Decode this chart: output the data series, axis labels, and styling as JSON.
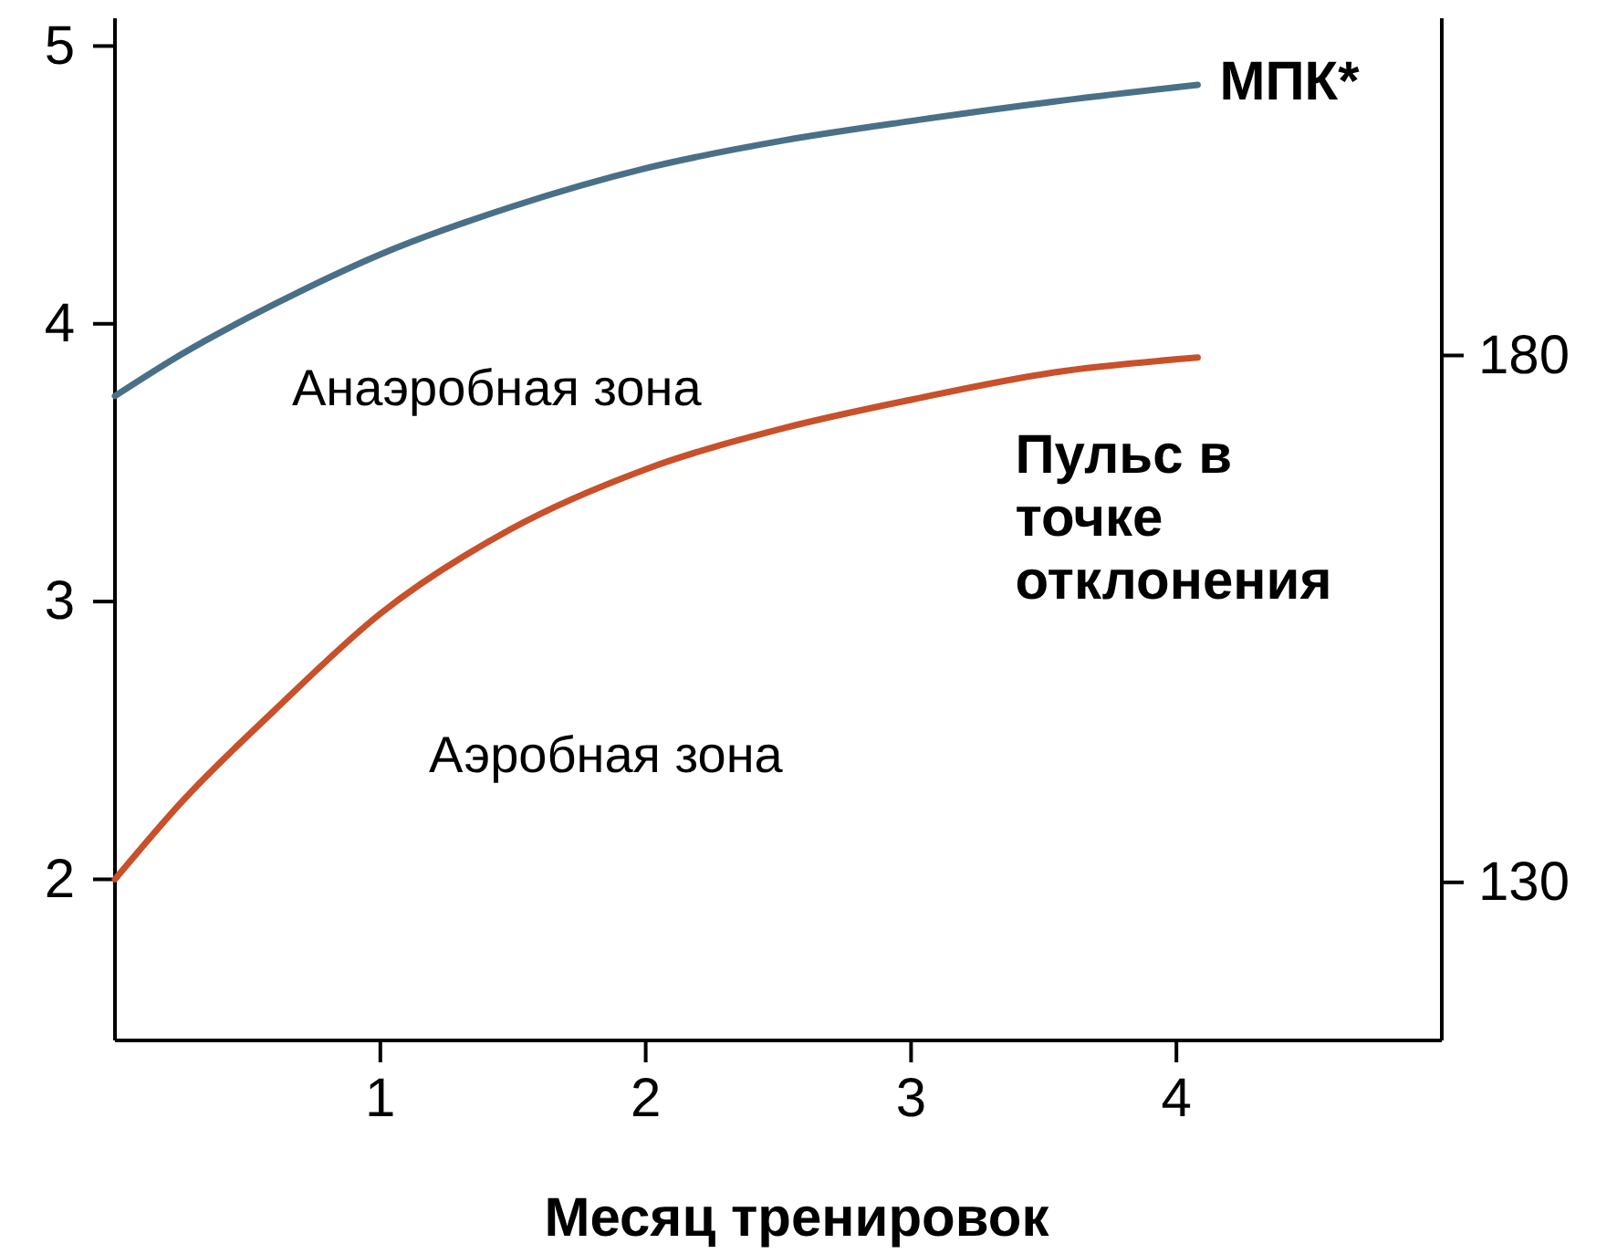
{
  "chart_data": {
    "type": "line",
    "xlabel": "Месяц тренировок",
    "xlim": [
      0,
      5
    ],
    "xticks": [
      1,
      2,
      3,
      4
    ],
    "ylim": [
      1.42,
      5.1
    ],
    "yticks": [
      2,
      3,
      4,
      5
    ],
    "y2lim": [
      115,
      212
    ],
    "y2ticks": [
      130,
      180
    ],
    "grid": false,
    "marker": "none",
    "line_style": "solid",
    "series": [
      {
        "name": "МПК*",
        "color": "#4a7088",
        "x": [
          0,
          0.25,
          0.6,
          1,
          1.49,
          2,
          2.52,
          3,
          3.54,
          4.08
        ],
        "values": [
          3.74,
          3.89,
          4.07,
          4.25,
          4.42,
          4.56,
          4.66,
          4.73,
          4.8,
          4.86
        ]
      },
      {
        "name": "Пульс в точке отклонения",
        "color": "#c8502a",
        "axis": "y2",
        "x": [
          0,
          0.25,
          0.6,
          1,
          1.49,
          2,
          2.52,
          3,
          3.54,
          4.08
        ],
        "values": [
          130.3,
          137.6,
          146.3,
          155.5,
          163.5,
          169.2,
          173.1,
          175.8,
          178.4,
          179.8
        ]
      }
    ],
    "annotations": [
      "Анаэробная зона",
      "Аэробная зона"
    ]
  }
}
